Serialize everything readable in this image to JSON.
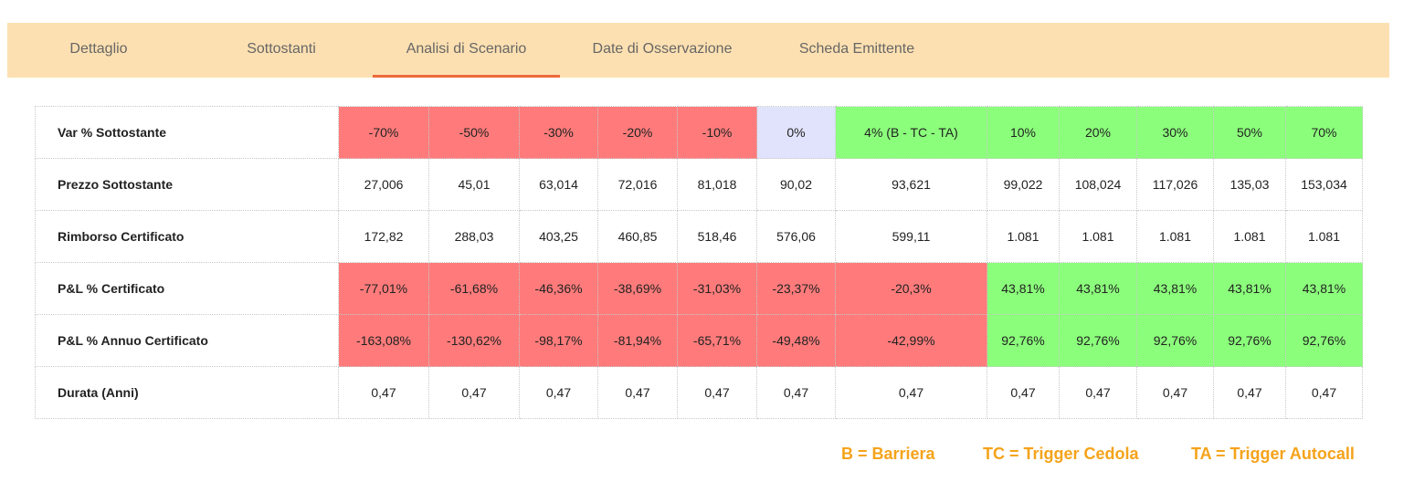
{
  "tabs": [
    {
      "label": "Dettaglio"
    },
    {
      "label": "Sottostanti"
    },
    {
      "label": "Analisi di Scenario",
      "active": true
    },
    {
      "label": "Date di Osservazione"
    },
    {
      "label": "Scheda Emittente"
    }
  ],
  "colors": {
    "tabbar_bg": "#fde0b1",
    "active_underline": "#ef6a3a",
    "negative_cell": "#ff7b7b",
    "positive_cell": "#8bff7b",
    "neutral_cell": "#e0e3fb",
    "legend_text": "#f5a31a"
  },
  "table": {
    "rows": [
      {
        "label": "Var % Sottostante",
        "cells": [
          "-70%",
          "-50%",
          "-30%",
          "-20%",
          "-10%",
          "0%",
          "4% (B - TC - TA)",
          "10%",
          "20%",
          "30%",
          "50%",
          "70%"
        ],
        "tones": [
          "red",
          "red",
          "red",
          "red",
          "red",
          "lav",
          "green",
          "green",
          "green",
          "green",
          "green",
          "green"
        ]
      },
      {
        "label": "Prezzo Sottostante",
        "cells": [
          "27,006",
          "45,01",
          "63,014",
          "72,016",
          "81,018",
          "90,02",
          "93,621",
          "99,022",
          "108,024",
          "117,026",
          "135,03",
          "153,034"
        ],
        "tones": [
          "",
          "",
          "",
          "",
          "",
          "",
          "",
          "",
          "",
          "",
          "",
          ""
        ]
      },
      {
        "label": "Rimborso Certificato",
        "cells": [
          "172,82",
          "288,03",
          "403,25",
          "460,85",
          "518,46",
          "576,06",
          "599,11",
          "1.081",
          "1.081",
          "1.081",
          "1.081",
          "1.081"
        ],
        "tones": [
          "",
          "",
          "",
          "",
          "",
          "",
          "",
          "",
          "",
          "",
          "",
          ""
        ]
      },
      {
        "label": "P&L % Certificato",
        "cells": [
          "-77,01%",
          "-61,68%",
          "-46,36%",
          "-38,69%",
          "-31,03%",
          "-23,37%",
          "-20,3%",
          "43,81%",
          "43,81%",
          "43,81%",
          "43,81%",
          "43,81%"
        ],
        "tones": [
          "red",
          "red",
          "red",
          "red",
          "red",
          "red",
          "red",
          "green",
          "green",
          "green",
          "green",
          "green"
        ]
      },
      {
        "label": "P&L % Annuo Certificato",
        "cells": [
          "-163,08%",
          "-130,62%",
          "-98,17%",
          "-81,94%",
          "-65,71%",
          "-49,48%",
          "-42,99%",
          "92,76%",
          "92,76%",
          "92,76%",
          "92,76%",
          "92,76%"
        ],
        "tones": [
          "red",
          "red",
          "red",
          "red",
          "red",
          "red",
          "red",
          "green",
          "green",
          "green",
          "green",
          "green"
        ]
      },
      {
        "label": "Durata (Anni)",
        "cells": [
          "0,47",
          "0,47",
          "0,47",
          "0,47",
          "0,47",
          "0,47",
          "0,47",
          "0,47",
          "0,47",
          "0,47",
          "0,47",
          "0,47"
        ],
        "tones": [
          "",
          "",
          "",
          "",
          "",
          "",
          "",
          "",
          "",
          "",
          "",
          ""
        ]
      }
    ]
  },
  "legend": {
    "barriera": "B = Barriera",
    "trigger_cedola": "TC = Trigger Cedola",
    "trigger_autocall": "TA = Trigger Autocall"
  }
}
